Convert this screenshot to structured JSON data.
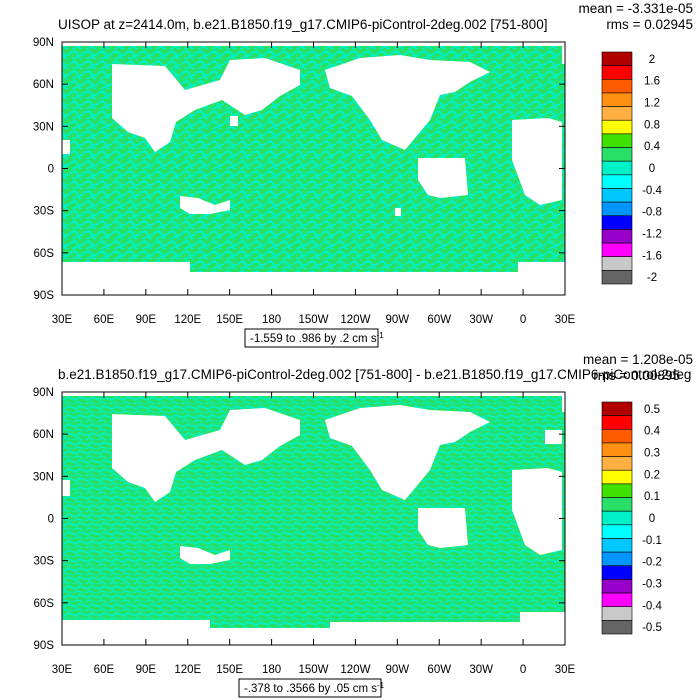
{
  "chart_data": [
    {
      "type": "heatmap",
      "title": "UISOP at z=2414.0m, b.e21.B1850.f19_g17.CMIP6-piControl-2deg.002 [751-800]",
      "stats": {
        "mean": "mean = -3.331e-05",
        "rms": "rms = 0.02945"
      },
      "x_ticks": [
        "30E",
        "60E",
        "90E",
        "120E",
        "150E",
        "180",
        "150W",
        "120W",
        "90W",
        "60W",
        "30W",
        "0",
        "30E"
      ],
      "y_ticks": [
        "90N",
        "60N",
        "30N",
        "0",
        "30S",
        "60S",
        "90S"
      ],
      "range_label": "-1.559 to .986 by .2 cm s",
      "range_unit_sup": "-1",
      "levels": [
        "2",
        "1.6",
        "1.2",
        "0.8",
        "0.4",
        "0",
        "-0.4",
        "-0.8",
        "-1.2",
        "-1.6",
        "-2"
      ],
      "colors": [
        "#b00000",
        "#ff0000",
        "#ff5a00",
        "#ff9010",
        "#ffb040",
        "#ffff00",
        "#40e000",
        "#28e066",
        "#00f0c8",
        "#00ffff",
        "#00c8ff",
        "#0096ff",
        "#0000ff",
        "#9600c8",
        "#ff00ff",
        "#c8c8c8",
        "#646464"
      ],
      "dominant_values": {
        "ocean_main": 0,
        "ocean_secondary": -0.2
      }
    },
    {
      "type": "heatmap",
      "title": "b.e21.B1850.f19_g17.CMIP6-piControl-2deg.002 [751-800] - b.e21.B1850.f19_g17.CMIP6-piControl-2deg",
      "stats": {
        "mean": "mean = 1.208e-05",
        "rms": "rms = 0.00895"
      },
      "x_ticks": [
        "30E",
        "60E",
        "90E",
        "120E",
        "150E",
        "180",
        "150W",
        "120W",
        "90W",
        "60W",
        "30W",
        "0",
        "30E"
      ],
      "y_ticks": [
        "90N",
        "60N",
        "30N",
        "0",
        "30S",
        "60S",
        "90S"
      ],
      "range_label": "-.378 to .3566 by .05 cm s",
      "range_unit_sup": "-1",
      "levels": [
        "0.5",
        "0.4",
        "0.3",
        "0.2",
        "0.1",
        "0",
        "-0.1",
        "-0.2",
        "-0.3",
        "-0.4",
        "-0.5"
      ],
      "colors": [
        "#b00000",
        "#ff0000",
        "#ff5a00",
        "#ff9010",
        "#ffb040",
        "#ffff00",
        "#40e000",
        "#28e066",
        "#00f0c8",
        "#00ffff",
        "#00c8ff",
        "#0096ff",
        "#0000ff",
        "#9600c8",
        "#ff00ff",
        "#c8c8c8",
        "#646464"
      ],
      "dominant_values": {
        "ocean_main": 0,
        "ocean_secondary": -0.05
      }
    }
  ]
}
